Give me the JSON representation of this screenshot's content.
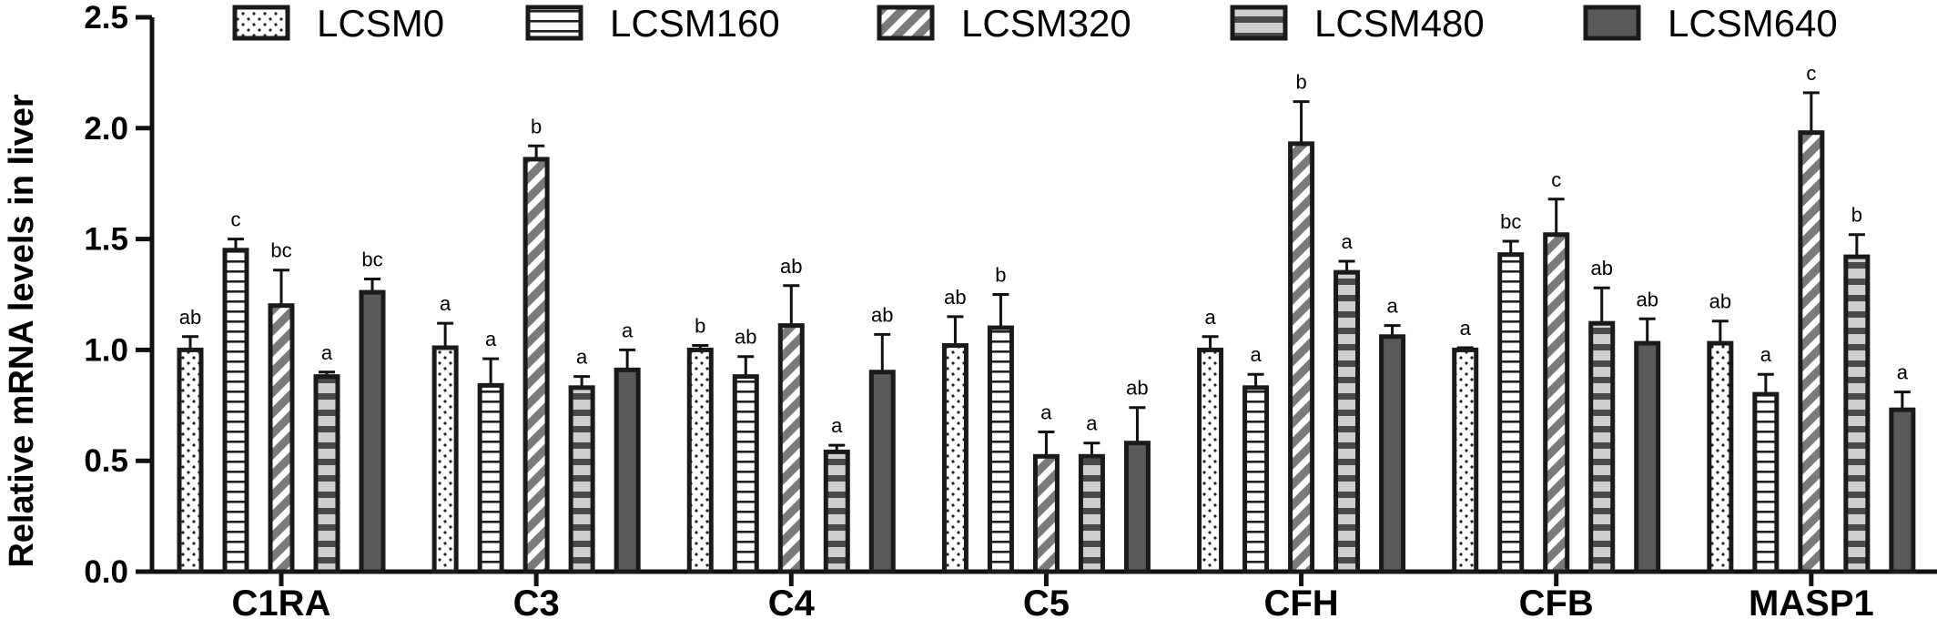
{
  "chart_data": {
    "type": "bar",
    "ylabel": "Relative mRNA levels in liver",
    "xlabel": "",
    "ylim": [
      0,
      2.5
    ],
    "yticks": [
      "0.0",
      "0.5",
      "1.0",
      "1.5",
      "2.0",
      "2.5"
    ],
    "grid": false,
    "legend_position": "top",
    "categories": [
      "C1RA",
      "C3",
      "C4",
      "C5",
      "CFH",
      "CFB",
      "MASP1"
    ],
    "series": [
      {
        "name": "LCSM0",
        "pattern": "dots",
        "fill": "#ffffff",
        "values": [
          1.0,
          1.01,
          1.0,
          1.02,
          1.0,
          1.0,
          1.03
        ],
        "errors": [
          0.06,
          0.11,
          0.02,
          0.13,
          0.06,
          0.01,
          0.1
        ],
        "labels": [
          "ab",
          "a",
          "b",
          "ab",
          "a",
          "a",
          "ab"
        ]
      },
      {
        "name": "LCSM160",
        "pattern": "horizontal-lines",
        "fill": "#ffffff",
        "values": [
          1.45,
          0.84,
          0.88,
          1.1,
          0.83,
          1.43,
          0.8
        ],
        "errors": [
          0.05,
          0.12,
          0.09,
          0.15,
          0.06,
          0.06,
          0.09
        ],
        "labels": [
          "c",
          "a",
          "ab",
          "b",
          "a",
          "bc",
          "a"
        ]
      },
      {
        "name": "LCSM320",
        "pattern": "diagonal-stripes",
        "fill": "#808080",
        "values": [
          1.2,
          1.86,
          1.11,
          0.52,
          1.93,
          1.52,
          1.98
        ],
        "errors": [
          0.16,
          0.06,
          0.18,
          0.11,
          0.19,
          0.16,
          0.18
        ],
        "labels": [
          "bc",
          "b",
          "ab",
          "a",
          "b",
          "c",
          "c"
        ]
      },
      {
        "name": "LCSM480",
        "pattern": "thick-horizontal-stripes",
        "fill": "#c8c8c8",
        "values": [
          0.88,
          0.83,
          0.54,
          0.52,
          1.35,
          1.12,
          1.42
        ],
        "errors": [
          0.02,
          0.05,
          0.03,
          0.06,
          0.05,
          0.16,
          0.1
        ],
        "labels": [
          "a",
          "a",
          "a",
          "a",
          "a",
          "ab",
          "b"
        ]
      },
      {
        "name": "LCSM640",
        "pattern": "solid",
        "fill": "#5a5a5a",
        "values": [
          1.26,
          0.91,
          0.9,
          0.58,
          1.06,
          1.03,
          0.73
        ],
        "errors": [
          0.06,
          0.09,
          0.17,
          0.16,
          0.05,
          0.11,
          0.08
        ],
        "labels": [
          "bc",
          "a",
          "ab",
          "ab",
          "a",
          "ab",
          "a"
        ]
      }
    ]
  }
}
